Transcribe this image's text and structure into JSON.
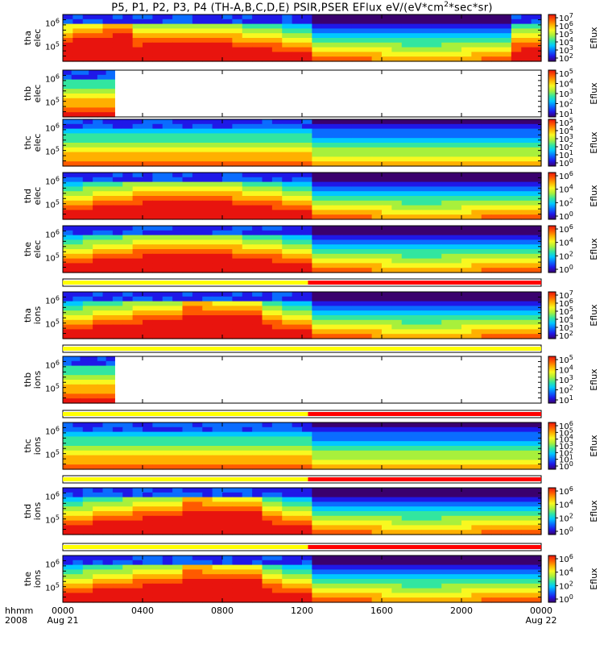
{
  "title_parts": {
    "pre": "P5, P1, P2, P3, P4 (TH-A,B,C,D,E) PSIR,PSER EFlux eV/(eV*cm",
    "sup": "2",
    "post": "*sec*sr)"
  },
  "footer": {
    "hhmm": "hhmm",
    "year": "2008",
    "start_date": "Aug 21",
    "end_date": "Aug 22"
  },
  "colors": {
    "colormap": [
      "#3a006e",
      "#1f18e8",
      "#0a6cff",
      "#00c8ff",
      "#32e6a0",
      "#a8f03c",
      "#f8f820",
      "#ffb000",
      "#ff5a00",
      "#e8140e"
    ],
    "state_bar_yellow": "#ffff00",
    "state_bar_red": "#ff0000"
  },
  "chart_data": {
    "type": "heatmap",
    "x_axis": {
      "ticks": [
        "0000",
        "0400",
        "0800",
        "1200",
        "1600",
        "2000",
        "0000"
      ],
      "range_hours": [
        0,
        24
      ]
    },
    "y_axis": {
      "scale": "log",
      "tick_labels": [
        "10^5",
        "10^6"
      ],
      "unit": "eV"
    },
    "panels": [
      {
        "name": "tha elec",
        "line1": "tha",
        "line2": "elec",
        "colorbar_label": "Eflux",
        "colorbar_ticks": [
          "10^7",
          "10^6",
          "10^5",
          "10^4",
          "10^3",
          "10^2"
        ],
        "data_extent_hours": [
          0,
          24
        ],
        "peak_flux_regions_hours": [
          [
            0.3,
            3.5
          ],
          [
            6.5,
            9.5
          ],
          [
            22.5,
            24
          ]
        ]
      },
      {
        "name": "thb elec",
        "line1": "thb",
        "line2": "elec",
        "colorbar_label": "Eflux",
        "colorbar_ticks": [
          "10^5",
          "10^4",
          "10^3",
          "10^2",
          "10^1"
        ],
        "data_extent_hours": [
          0,
          2.6
        ]
      },
      {
        "name": "thc elec",
        "line1": "thc",
        "line2": "elec",
        "colorbar_label": "Eflux",
        "colorbar_ticks": [
          "10^5",
          "10^4",
          "10^3",
          "10^2",
          "10^1",
          "10^0"
        ],
        "data_extent_hours": [
          0,
          24
        ]
      },
      {
        "name": "thd elec",
        "line1": "thd",
        "line2": "elec",
        "colorbar_label": "Eflux",
        "colorbar_ticks": [
          "10^6",
          "10^4",
          "10^2",
          "10^0"
        ],
        "data_extent_hours": [
          0,
          24
        ]
      },
      {
        "name": "the elec",
        "line1": "the",
        "line2": "elec",
        "colorbar_label": "Eflux",
        "colorbar_ticks": [
          "10^6",
          "10^4",
          "10^2",
          "10^0"
        ],
        "data_extent_hours": [
          0,
          24
        ]
      },
      {
        "name": "tha ions",
        "line1": "tha",
        "line2": "ions",
        "colorbar_label": "Eflux",
        "colorbar_ticks": [
          "10^7",
          "10^6",
          "10^5",
          "10^4",
          "10^3",
          "10^2"
        ],
        "data_extent_hours": [
          0,
          24
        ]
      },
      {
        "name": "thb ions",
        "line1": "thb",
        "line2": "ions",
        "colorbar_label": "Eflux",
        "colorbar_ticks": [
          "10^5",
          "10^4",
          "10^3",
          "10^2",
          "10^1"
        ],
        "data_extent_hours": [
          0,
          2.6
        ]
      },
      {
        "name": "thc ions",
        "line1": "thc",
        "line2": "ions",
        "colorbar_label": "Eflux",
        "colorbar_ticks": [
          "10^6",
          "10^5",
          "10^4",
          "10^3",
          "10^2",
          "10^1",
          "10^0"
        ],
        "data_extent_hours": [
          0,
          24
        ]
      },
      {
        "name": "thd ions",
        "line1": "thd",
        "line2": "ions",
        "colorbar_label": "Eflux",
        "colorbar_ticks": [
          "10^6",
          "10^4",
          "10^2",
          "10^0"
        ],
        "data_extent_hours": [
          0,
          24
        ]
      },
      {
        "name": "the ions",
        "line1": "the",
        "line2": "ions",
        "colorbar_label": "Eflux",
        "colorbar_ticks": [
          "10^6",
          "10^4",
          "10^2",
          "10^0"
        ],
        "data_extent_hours": [
          0,
          24
        ]
      }
    ],
    "state_bars": [
      {
        "after_panel": 4,
        "yellow_hours": [
          0,
          12.3
        ],
        "red_hours": [
          12.3,
          24
        ]
      },
      {
        "after_panel": 5,
        "yellow_hours": [
          0,
          24
        ],
        "red_hours": []
      },
      {
        "after_panel": 6,
        "yellow_hours": [
          0,
          12.3
        ],
        "red_hours": [
          12.3,
          24
        ]
      },
      {
        "after_panel": 7,
        "yellow_hours": [
          0,
          12.3
        ],
        "red_hours": [
          12.3,
          24
        ]
      },
      {
        "after_panel": 8,
        "yellow_hours": [
          0,
          12.3
        ],
        "red_hours": [
          12.3,
          24
        ]
      }
    ]
  }
}
